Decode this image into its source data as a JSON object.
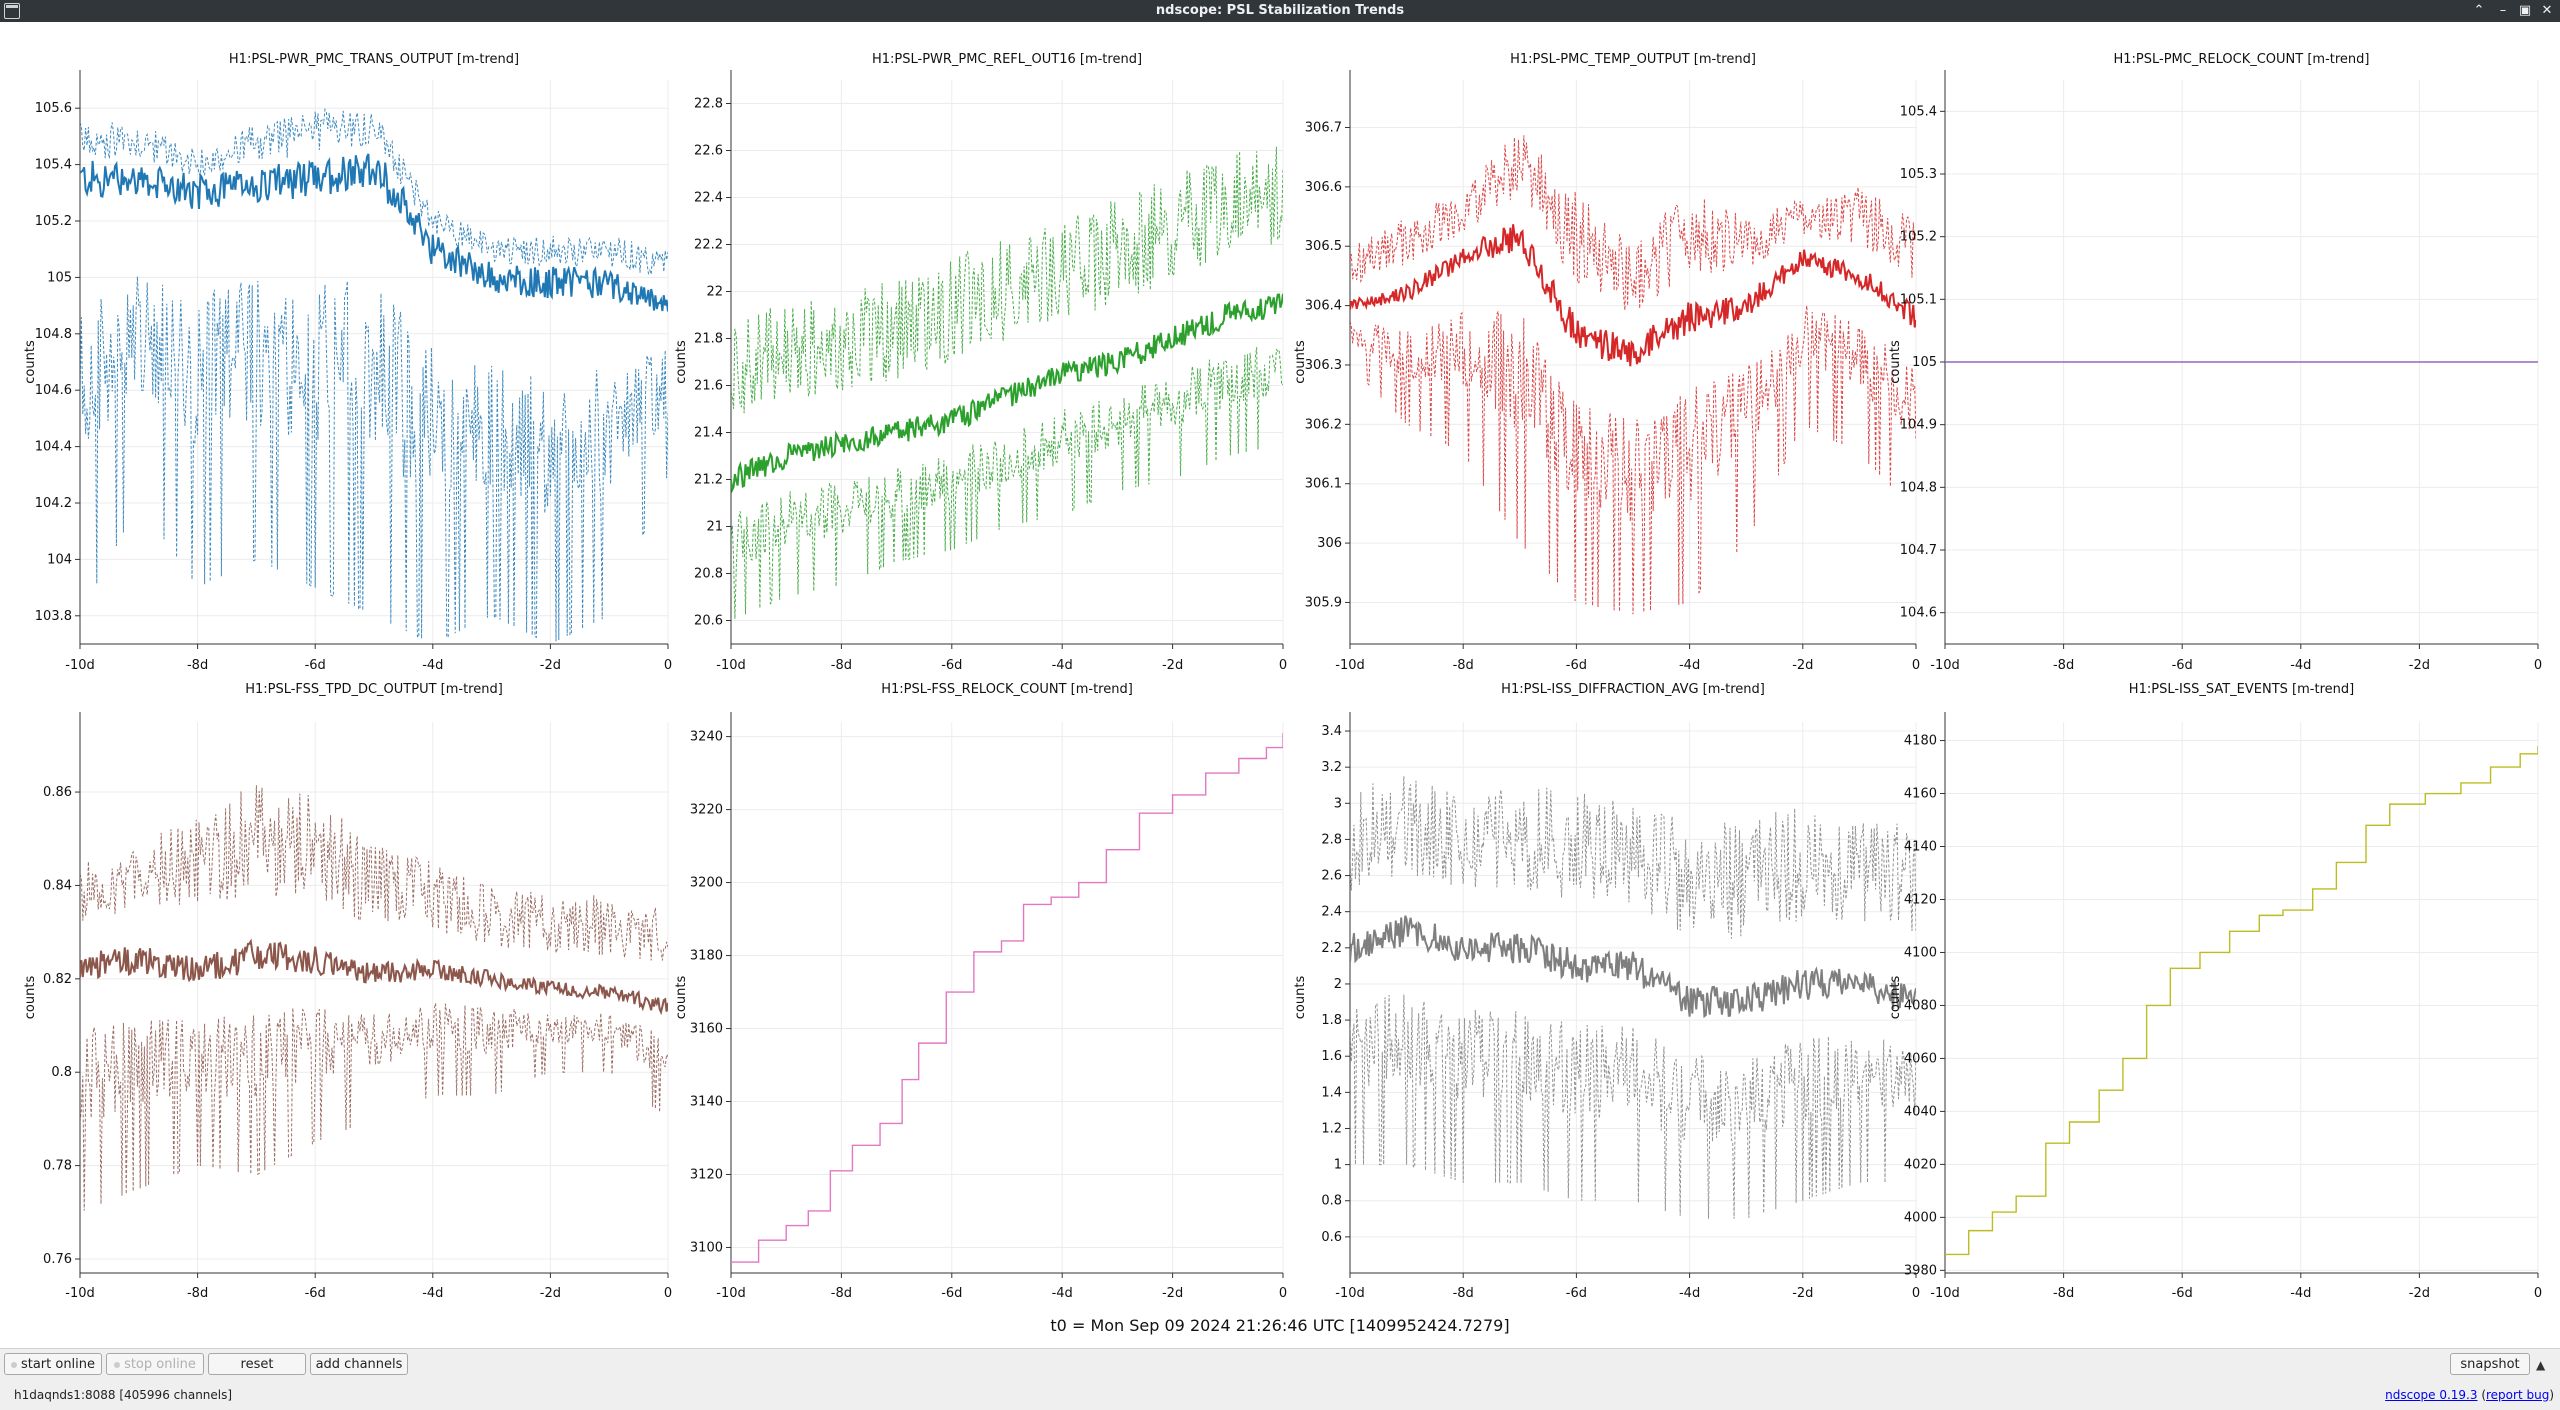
{
  "window": {
    "title": "ndscope: PSL Stabilization Trends"
  },
  "x_ticks": [
    "-10d",
    "-8d",
    "-6d",
    "-4d",
    "-2d",
    "0"
  ],
  "y_label": "counts",
  "t0": "t0 = Mon Sep 09 2024 21:26:46 UTC [1409952424.7279]",
  "toolbar": {
    "start_online": "start online",
    "stop_online": "stop online",
    "reset": "reset",
    "add_channels": "add channels",
    "snapshot": "snapshot"
  },
  "status": {
    "server": "h1daqnds1:8088  [405996 channels]",
    "version_link": "ndscope 0.19.3",
    "report_bug": "report bug"
  },
  "chart_data": [
    {
      "type": "line",
      "title": "H1:PSL-PWR_PMC_TRANS_OUTPUT [m-trend]",
      "ylabel": "counts",
      "color": "#1f77b4",
      "y_ticks": [
        "103.8",
        "104",
        "104.2",
        "104.4",
        "104.6",
        "104.8",
        "105",
        "105.2",
        "105.4",
        "105.6"
      ],
      "ylim": [
        103.7,
        105.7
      ],
      "x": [
        -10,
        -9,
        -8,
        -7,
        -6,
        -5,
        -4,
        -3,
        -2,
        -1,
        0
      ],
      "min": [
        103.8,
        104.2,
        103.9,
        104.0,
        103.9,
        103.8,
        103.7,
        103.8,
        103.7,
        103.8,
        104.3
      ],
      "mean": [
        105.35,
        105.35,
        105.3,
        105.33,
        105.35,
        105.4,
        105.1,
        105.0,
        104.98,
        104.98,
        104.9
      ],
      "max": [
        105.55,
        105.55,
        105.45,
        105.55,
        105.6,
        105.6,
        105.25,
        105.15,
        105.15,
        105.15,
        105.1
      ]
    },
    {
      "type": "line",
      "title": "H1:PSL-PWR_PMC_REFL_OUT16 [m-trend]",
      "ylabel": "counts",
      "color": "#2ca02c",
      "y_ticks": [
        "20.6",
        "20.8",
        "21",
        "21.2",
        "21.4",
        "21.6",
        "21.8",
        "22",
        "22.2",
        "22.4",
        "22.6",
        "22.8"
      ],
      "ylim": [
        20.5,
        22.9
      ],
      "x": [
        -10,
        -9,
        -8,
        -7,
        -6,
        -5,
        -4,
        -3,
        -2,
        -1,
        0
      ],
      "min": [
        20.6,
        20.7,
        20.75,
        20.85,
        20.9,
        21.0,
        21.05,
        21.15,
        21.2,
        21.3,
        21.35
      ],
      "mean": [
        21.2,
        21.3,
        21.35,
        21.4,
        21.45,
        21.55,
        21.65,
        21.7,
        21.8,
        21.9,
        21.95
      ],
      "max": [
        21.9,
        21.95,
        22.0,
        22.05,
        22.15,
        22.25,
        22.3,
        22.4,
        22.5,
        22.6,
        22.65
      ]
    },
    {
      "type": "line",
      "title": "H1:PSL-PMC_TEMP_OUTPUT [m-trend]",
      "ylabel": "counts",
      "color": "#d62728",
      "y_ticks": [
        "305.9",
        "306",
        "306.1",
        "306.2",
        "306.3",
        "306.4",
        "306.5",
        "306.6",
        "306.7"
      ],
      "ylim": [
        305.83,
        306.78
      ],
      "x": [
        -10,
        -9,
        -8,
        -7,
        -6,
        -5,
        -4,
        -3,
        -2,
        -1,
        0
      ],
      "min": [
        306.3,
        306.2,
        306.15,
        306.0,
        305.9,
        305.88,
        305.9,
        306.0,
        306.2,
        306.15,
        306.05
      ],
      "mean": [
        306.4,
        306.42,
        306.48,
        306.52,
        306.35,
        306.32,
        306.38,
        306.4,
        306.48,
        306.45,
        306.38
      ],
      "max": [
        306.5,
        306.55,
        306.6,
        306.7,
        306.6,
        306.5,
        306.6,
        306.55,
        306.58,
        306.6,
        306.55
      ]
    },
    {
      "type": "line",
      "title": "H1:PSL-PMC_RELOCK_COUNT [m-trend]",
      "ylabel": "counts",
      "color": "#9467bd",
      "y_ticks": [
        "104.6",
        "104.7",
        "104.8",
        "104.9",
        "105",
        "105.1",
        "105.2",
        "105.3",
        "105.4"
      ],
      "ylim": [
        104.55,
        105.45
      ],
      "x": [
        -10,
        0
      ],
      "mean": [
        105,
        105
      ]
    },
    {
      "type": "line",
      "title": "H1:PSL-FSS_TPD_DC_OUTPUT [m-trend]",
      "ylabel": "counts",
      "color": "#8c564b",
      "y_ticks": [
        "0.76",
        "0.78",
        "0.8",
        "0.82",
        "0.84",
        "0.86"
      ],
      "ylim": [
        0.757,
        0.875
      ],
      "x": [
        -10,
        -9,
        -8,
        -7,
        -6,
        -5,
        -4,
        -3,
        -2,
        -1,
        0
      ],
      "min": [
        0.77,
        0.775,
        0.78,
        0.778,
        0.785,
        0.79,
        0.795,
        0.795,
        0.8,
        0.8,
        0.79
      ],
      "mean": [
        0.823,
        0.824,
        0.822,
        0.825,
        0.824,
        0.821,
        0.822,
        0.82,
        0.818,
        0.817,
        0.814
      ],
      "max": [
        0.845,
        0.85,
        0.855,
        0.862,
        0.86,
        0.85,
        0.845,
        0.84,
        0.838,
        0.838,
        0.835
      ]
    },
    {
      "type": "line",
      "title": "H1:PSL-FSS_RELOCK_COUNT [m-trend]",
      "ylabel": "counts",
      "color": "#e377c2",
      "y_ticks": [
        "3100",
        "3120",
        "3140",
        "3160",
        "3180",
        "3200",
        "3220",
        "3240"
      ],
      "ylim": [
        3093,
        3244
      ],
      "x": [
        -10,
        -9.5,
        -9,
        -8.6,
        -8.2,
        -7.8,
        -7.3,
        -6.9,
        -6.6,
        -6.1,
        -5.6,
        -5.1,
        -4.7,
        -4.2,
        -3.7,
        -3.2,
        -2.6,
        -2.0,
        -1.4,
        -0.8,
        -0.3,
        0
      ],
      "values": [
        3096,
        3102,
        3106,
        3110,
        3121,
        3128,
        3134,
        3146,
        3156,
        3170,
        3181,
        3184,
        3194,
        3196,
        3200,
        3209,
        3219,
        3224,
        3230,
        3234,
        3237,
        3241
      ]
    },
    {
      "type": "line",
      "title": "H1:PSL-ISS_DIFFRACTION_AVG [m-trend]",
      "ylabel": "counts",
      "color": "#7f7f7f",
      "y_ticks": [
        "0.6",
        "0.8",
        "1",
        "1.2",
        "1.4",
        "1.6",
        "1.8",
        "2",
        "2.2",
        "2.4",
        "2.6",
        "2.8",
        "3",
        "3.2",
        "3.4"
      ],
      "ylim": [
        0.4,
        3.45
      ],
      "x": [
        -10,
        -9,
        -8,
        -7,
        -6,
        -5,
        -4,
        -3,
        -2,
        -1,
        0
      ],
      "min": [
        1.0,
        1.0,
        0.9,
        0.9,
        0.8,
        0.8,
        0.7,
        0.7,
        0.8,
        0.9,
        0.9
      ],
      "mean": [
        2.2,
        2.3,
        2.2,
        2.2,
        2.1,
        2.1,
        1.9,
        1.9,
        2.0,
        2.0,
        1.9
      ],
      "max": [
        3.1,
        3.2,
        3.1,
        3.1,
        3.1,
        3.0,
        2.9,
        2.9,
        3.0,
        2.9,
        2.9
      ]
    },
    {
      "type": "line",
      "title": "H1:PSL-ISS_SAT_EVENTS [m-trend]",
      "ylabel": "counts",
      "color": "#bcbd22",
      "y_ticks": [
        "3980",
        "4000",
        "4020",
        "4040",
        "4060",
        "4080",
        "4100",
        "4120",
        "4140",
        "4160",
        "4180"
      ],
      "ylim": [
        3979,
        4187
      ],
      "x": [
        -10,
        -9.6,
        -9.2,
        -8.8,
        -8.3,
        -7.9,
        -7.4,
        -7.0,
        -6.6,
        -6.2,
        -5.7,
        -5.2,
        -4.7,
        -4.3,
        -3.8,
        -3.4,
        -2.9,
        -2.5,
        -1.9,
        -1.3,
        -0.8,
        -0.3,
        0
      ],
      "values": [
        3986,
        3995,
        4002,
        4008,
        4028,
        4036,
        4048,
        4060,
        4080,
        4094,
        4100,
        4108,
        4114,
        4116,
        4124,
        4134,
        4148,
        4156,
        4160,
        4164,
        4170,
        4175,
        4178
      ]
    }
  ]
}
